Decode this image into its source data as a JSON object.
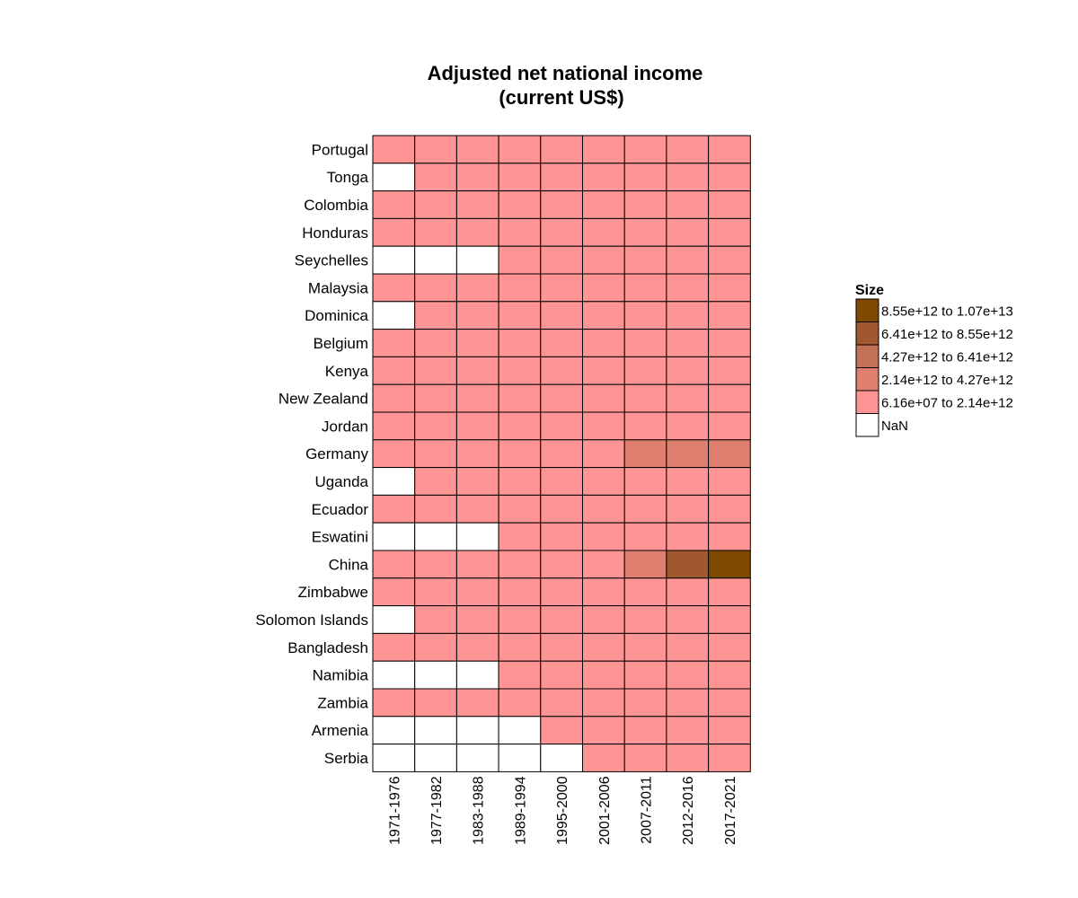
{
  "chart_data": {
    "type": "heatmap",
    "title_lines": [
      "Adjusted net national income",
      "(current US$)"
    ],
    "columns": [
      "1971-1976",
      "1977-1982",
      "1983-1988",
      "1989-1994",
      "1995-2000",
      "2001-2006",
      "2007-2011",
      "2012-2016",
      "2017-2021"
    ],
    "rows": [
      "Portugal",
      "Tonga",
      "Colombia",
      "Honduras",
      "Seychelles",
      "Malaysia",
      "Dominica",
      "Belgium",
      "Kenya",
      "New Zealand",
      "Jordan",
      "Germany",
      "Uganda",
      "Ecuador",
      "Eswatini",
      "China",
      "Zimbabwe",
      "Solomon Islands",
      "Bangladesh",
      "Namibia",
      "Zambia",
      "Armenia",
      "Serbia"
    ],
    "matrix": [
      [
        0,
        0,
        0,
        0,
        0,
        0,
        0,
        0,
        0
      ],
      [
        -1,
        0,
        0,
        0,
        0,
        0,
        0,
        0,
        0
      ],
      [
        0,
        0,
        0,
        0,
        0,
        0,
        0,
        0,
        0
      ],
      [
        0,
        0,
        0,
        0,
        0,
        0,
        0,
        0,
        0
      ],
      [
        -1,
        -1,
        -1,
        0,
        0,
        0,
        0,
        0,
        0
      ],
      [
        0,
        0,
        0,
        0,
        0,
        0,
        0,
        0,
        0
      ],
      [
        -1,
        0,
        0,
        0,
        0,
        0,
        0,
        0,
        0
      ],
      [
        0,
        0,
        0,
        0,
        0,
        0,
        0,
        0,
        0
      ],
      [
        0,
        0,
        0,
        0,
        0,
        0,
        0,
        0,
        0
      ],
      [
        0,
        0,
        0,
        0,
        0,
        0,
        0,
        0,
        0
      ],
      [
        0,
        0,
        0,
        0,
        0,
        0,
        0,
        0,
        0
      ],
      [
        0,
        0,
        0,
        0,
        0,
        0,
        1,
        1,
        1
      ],
      [
        -1,
        0,
        0,
        0,
        0,
        0,
        0,
        0,
        0
      ],
      [
        0,
        0,
        0,
        0,
        0,
        0,
        0,
        0,
        0
      ],
      [
        -1,
        -1,
        -1,
        0,
        0,
        0,
        0,
        0,
        0
      ],
      [
        0,
        0,
        0,
        0,
        0,
        0,
        1,
        3,
        4
      ],
      [
        0,
        0,
        0,
        0,
        0,
        0,
        0,
        0,
        0
      ],
      [
        -1,
        0,
        0,
        0,
        0,
        0,
        0,
        0,
        0
      ],
      [
        0,
        0,
        0,
        0,
        0,
        0,
        0,
        0,
        0
      ],
      [
        -1,
        -1,
        -1,
        0,
        0,
        0,
        0,
        0,
        0
      ],
      [
        0,
        0,
        0,
        0,
        0,
        0,
        0,
        0,
        0
      ],
      [
        -1,
        -1,
        -1,
        -1,
        0,
        0,
        0,
        0,
        0
      ],
      [
        -1,
        -1,
        -1,
        -1,
        -1,
        0,
        0,
        0,
        0
      ]
    ],
    "legend": {
      "title": "Size",
      "placement": "right",
      "bins": [
        {
          "label": "8.55e+12 to 1.07e+13",
          "color": "#7f4a00"
        },
        {
          "label": "6.41e+12 to 8.55e+12",
          "color": "#a0582e"
        },
        {
          "label": "4.27e+12 to 6.41e+12",
          "color": "#c07156"
        },
        {
          "label": "2.14e+12 to 4.27e+12",
          "color": "#df7f6f"
        },
        {
          "label": "6.16e+07 to 2.14e+12",
          "color": "#ff9494"
        },
        {
          "label": "NaN",
          "color": "#ffffff"
        }
      ]
    },
    "bin_index_colors": {
      "-1": "#ffffff",
      "0": "#ff9494",
      "1": "#df7f6f",
      "2": "#c07156",
      "3": "#a0582e",
      "4": "#7f4a00"
    }
  }
}
